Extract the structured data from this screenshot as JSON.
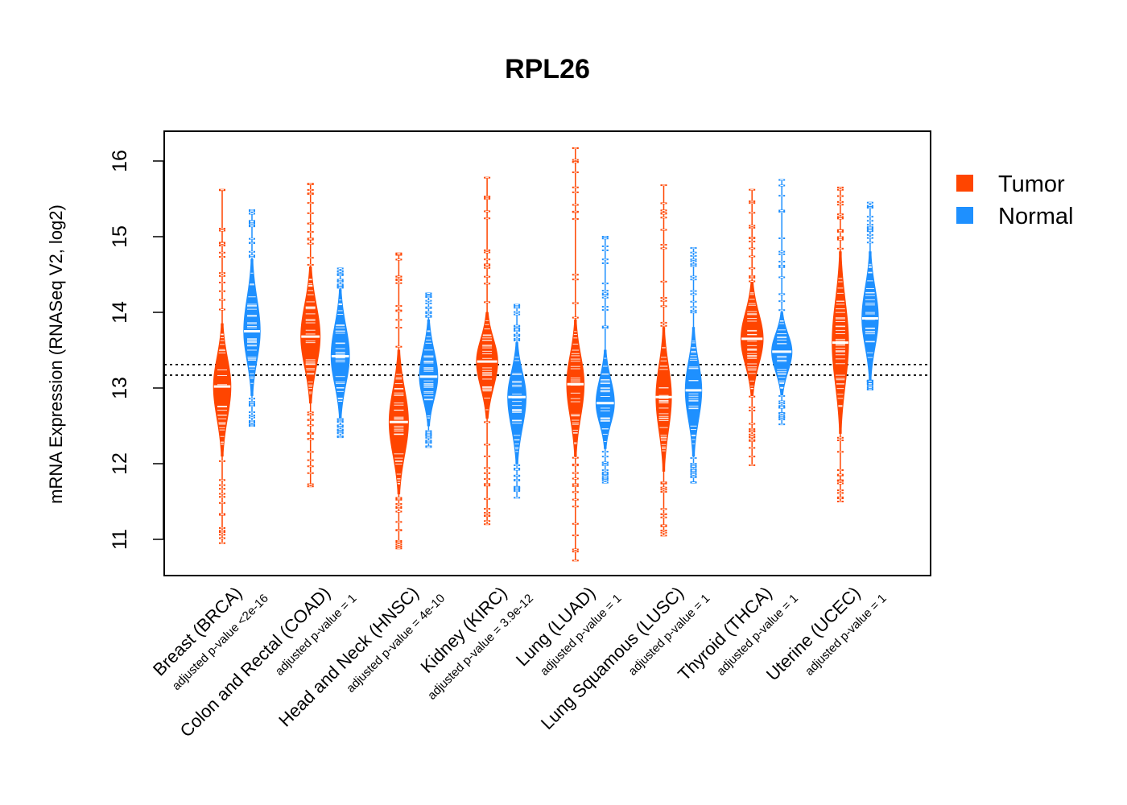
{
  "chart_data": {
    "type": "violin",
    "title": "RPL26",
    "ylabel": "mRNA Expression (RNASeq V2, log2)",
    "xlabel": "",
    "ylim": [
      10.5,
      16.4
    ],
    "yticks": [
      "11",
      "12",
      "13",
      "14",
      "15",
      "16"
    ],
    "reference_lines": [
      13.17,
      13.31
    ],
    "legend": {
      "position": "top-right",
      "entries": [
        {
          "name": "Tumor",
          "color": "#FF4500"
        },
        {
          "name": "Normal",
          "color": "#1E90FF"
        }
      ]
    },
    "categories": [
      {
        "label": "Breast (BRCA)",
        "pvalue": "adjusted p-value <2e-16",
        "tumor": {
          "median": 13.02,
          "q1": 12.7,
          "q3": 13.35,
          "min": 10.95,
          "max": 15.62,
          "body": [
            12.1,
            13.85
          ],
          "width": 0.9
        },
        "normal": {
          "median": 13.75,
          "q1": 13.4,
          "q3": 14.05,
          "min": 12.5,
          "max": 15.35,
          "body": [
            12.9,
            14.7
          ],
          "width": 0.85
        }
      },
      {
        "label": "Colon and Rectal (COAD)",
        "pvalue": "adjusted p-value = 1",
        "tumor": {
          "median": 13.68,
          "q1": 13.3,
          "q3": 14.05,
          "min": 11.7,
          "max": 15.7,
          "body": [
            12.8,
            14.6
          ],
          "width": 1.0
        },
        "normal": {
          "median": 13.42,
          "q1": 13.0,
          "q3": 13.8,
          "min": 12.35,
          "max": 14.58,
          "body": [
            12.6,
            14.3
          ],
          "width": 0.95
        }
      },
      {
        "label": "Head and Neck (HNSC)",
        "pvalue": "adjusted p-value = 4e-10",
        "tumor": {
          "median": 12.55,
          "q1": 12.15,
          "q3": 12.95,
          "min": 10.88,
          "max": 14.78,
          "body": [
            11.6,
            13.5
          ],
          "width": 1.0
        },
        "normal": {
          "median": 13.15,
          "q1": 12.85,
          "q3": 13.45,
          "min": 12.22,
          "max": 14.25,
          "body": [
            12.5,
            13.9
          ],
          "width": 0.95
        }
      },
      {
        "label": "Kidney (KIRC)",
        "pvalue": "adjusted p-value = 3.9e-12",
        "tumor": {
          "median": 13.35,
          "q1": 13.1,
          "q3": 13.7,
          "min": 11.2,
          "max": 15.78,
          "body": [
            12.6,
            14.0
          ],
          "width": 1.1
        },
        "normal": {
          "median": 12.88,
          "q1": 12.55,
          "q3": 13.15,
          "min": 11.55,
          "max": 14.1,
          "body": [
            12.0,
            13.6
          ],
          "width": 0.95
        }
      },
      {
        "label": "Lung (LUAD)",
        "pvalue": "adjusted p-value = 1",
        "tumor": {
          "median": 13.05,
          "q1": 12.6,
          "q3": 13.45,
          "min": 10.72,
          "max": 16.17,
          "body": [
            12.1,
            13.9
          ],
          "width": 0.9
        },
        "normal": {
          "median": 12.8,
          "q1": 12.55,
          "q3": 13.1,
          "min": 11.75,
          "max": 15.0,
          "body": [
            12.2,
            13.5
          ],
          "width": 0.95
        }
      },
      {
        "label": "Lung Squamous (LUSC)",
        "pvalue": "adjusted p-value = 1",
        "tumor": {
          "median": 12.88,
          "q1": 12.45,
          "q3": 13.3,
          "min": 11.05,
          "max": 15.68,
          "body": [
            11.9,
            13.8
          ],
          "width": 0.8
        },
        "normal": {
          "median": 12.97,
          "q1": 12.6,
          "q3": 13.3,
          "min": 11.75,
          "max": 14.85,
          "body": [
            12.1,
            13.8
          ],
          "width": 0.85
        }
      },
      {
        "label": "Thyroid (THCA)",
        "pvalue": "adjusted p-value = 1",
        "tumor": {
          "median": 13.65,
          "q1": 13.4,
          "q3": 13.9,
          "min": 11.98,
          "max": 15.62,
          "body": [
            12.9,
            14.4
          ],
          "width": 1.15
        },
        "normal": {
          "median": 13.48,
          "q1": 13.25,
          "q3": 13.7,
          "min": 12.52,
          "max": 15.75,
          "body": [
            12.9,
            14.0
          ],
          "width": 1.05
        }
      },
      {
        "label": "Uterine (UCEC)",
        "pvalue": "adjusted p-value = 1",
        "tumor": {
          "median": 13.6,
          "q1": 13.2,
          "q3": 14.0,
          "min": 11.5,
          "max": 15.65,
          "body": [
            12.4,
            14.8
          ],
          "width": 0.85
        },
        "normal": {
          "median": 13.92,
          "q1": 13.65,
          "q3": 14.2,
          "min": 12.98,
          "max": 15.45,
          "body": [
            13.1,
            14.8
          ],
          "width": 0.85
        }
      }
    ]
  }
}
